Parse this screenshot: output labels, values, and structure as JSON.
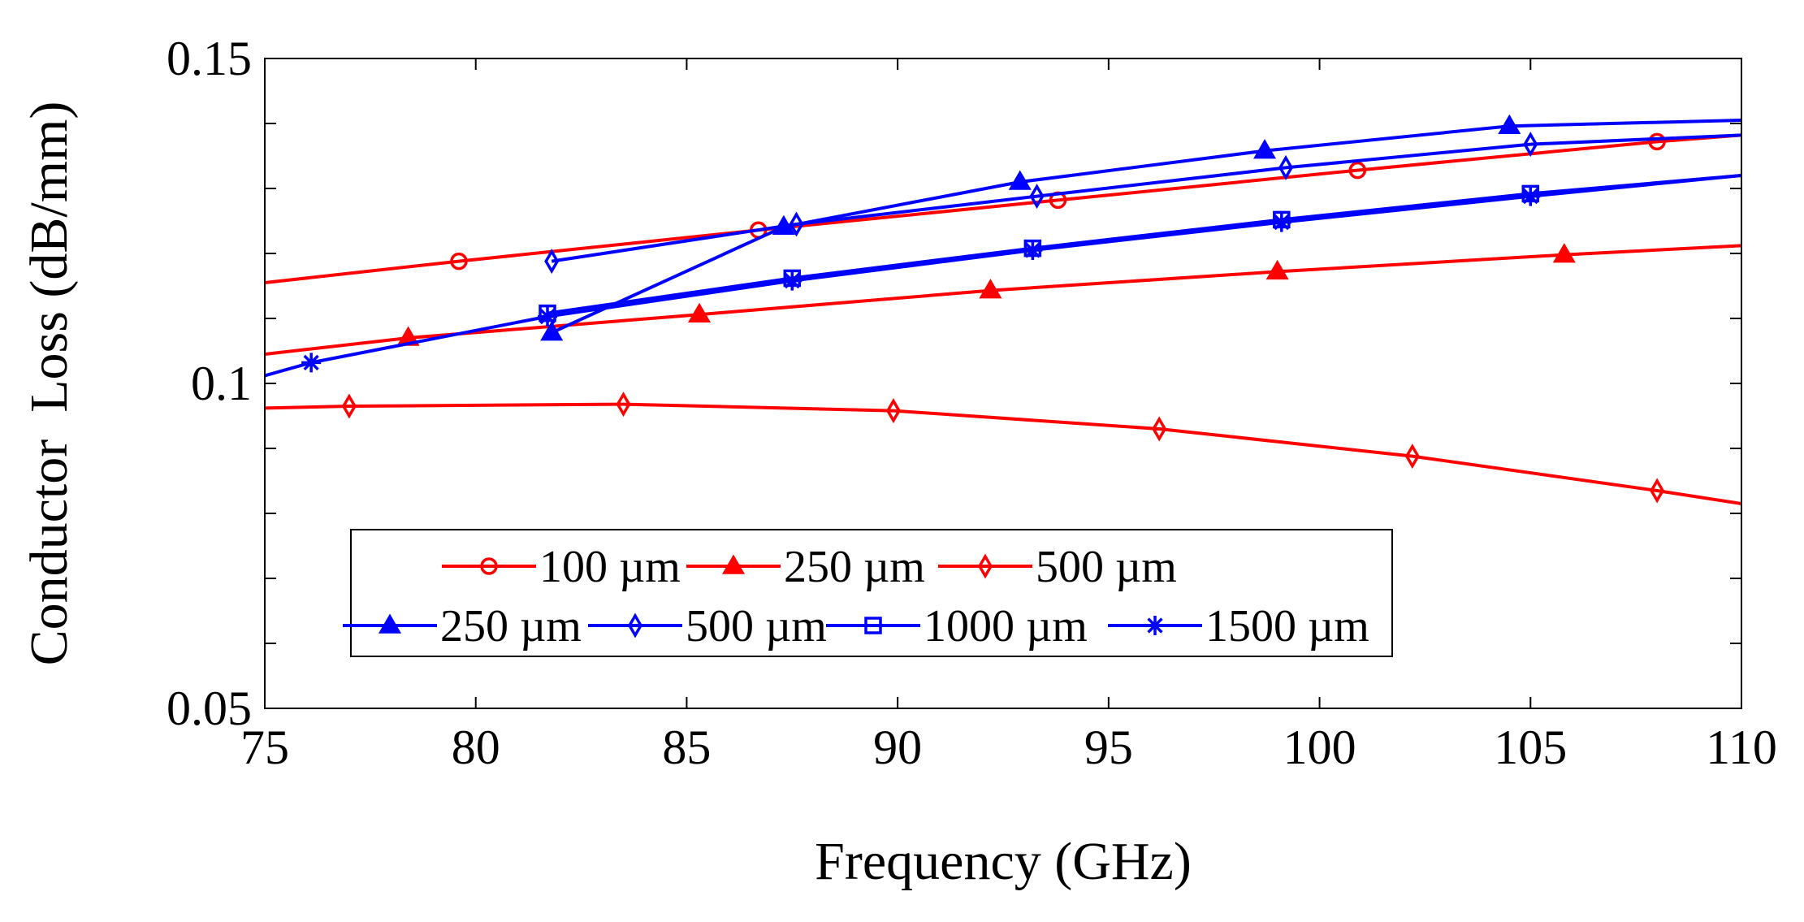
{
  "chart_data": {
    "type": "line",
    "title": "",
    "xlabel": "Frequency (GHz)",
    "ylabel": "Conductor  Loss (dB/mm)",
    "xlim": [
      75,
      110
    ],
    "ylim": [
      0.05,
      0.15
    ],
    "xticks": [
      75,
      80,
      85,
      90,
      95,
      100,
      105,
      110
    ],
    "xtick_labels": [
      "75",
      "80",
      "85",
      "90",
      "95",
      "100",
      "105",
      "110"
    ],
    "yticks": [
      0.05,
      0.1,
      0.15
    ],
    "ytick_labels": [
      "0.05",
      "0.1",
      "0.15"
    ],
    "yminor_ticks": [
      0.06,
      0.07,
      0.08,
      0.09,
      0.11,
      0.12,
      0.13,
      0.14
    ],
    "grid": false,
    "legend_position": "lower-center",
    "series": [
      {
        "name": "100 µm",
        "color": "#ff0000",
        "marker": "circle",
        "x": [
          75,
          79.6,
          86.7,
          93.8,
          100.9,
          108,
          110
        ],
        "y": [
          0.1155,
          0.1188,
          0.1236,
          0.1282,
          0.1328,
          0.1372,
          0.1382
        ],
        "marker_x": [
          79.6,
          86.7,
          93.8,
          100.9,
          108
        ]
      },
      {
        "name": "250 µm",
        "color": "#ff0000",
        "marker": "triangle",
        "x": [
          75,
          78.4,
          85.3,
          92.2,
          99,
          105.8,
          110
        ],
        "y": [
          0.1045,
          0.107,
          0.1106,
          0.1143,
          0.1172,
          0.1198,
          0.1212
        ],
        "marker_x": [
          78.4,
          85.3,
          92.2,
          99,
          105.8
        ]
      },
      {
        "name": "500 µm",
        "color": "#ff0000",
        "marker": "diamond",
        "x": [
          75,
          77,
          83.5,
          89.9,
          96.2,
          102.2,
          108,
          110
        ],
        "y": [
          0.0962,
          0.0965,
          0.0968,
          0.0958,
          0.093,
          0.0888,
          0.0835,
          0.0815
        ],
        "marker_x": [
          77,
          83.5,
          89.9,
          96.2,
          102.2,
          108
        ]
      },
      {
        "name": "250 µm",
        "color": "#0000ff",
        "marker": "triangle",
        "x": [
          81.8,
          87.3,
          92.9,
          98.7,
          104.5,
          110
        ],
        "y": [
          0.1078,
          0.1241,
          0.131,
          0.1358,
          0.1396,
          0.1405
        ],
        "marker_x": [
          81.8,
          87.3,
          92.9,
          98.7,
          104.5
        ]
      },
      {
        "name": "500 µm",
        "color": "#0000ff",
        "marker": "diamond",
        "x": [
          81.8,
          87.6,
          93.3,
          99.2,
          105,
          110
        ],
        "y": [
          0.1188,
          0.1245,
          0.1288,
          0.1332,
          0.1368,
          0.1382
        ],
        "marker_x": [
          81.8,
          87.6,
          93.3,
          99.2,
          105
        ]
      },
      {
        "name": "1000 µm",
        "color": "#0000ff",
        "marker": "square",
        "x": [
          81.7,
          87.5,
          93.2,
          99.1,
          105,
          110
        ],
        "y": [
          0.1108,
          0.1162,
          0.1208,
          0.1252,
          0.1292,
          0.132
        ],
        "marker_x": [
          81.7,
          87.5,
          93.2,
          99.1,
          105
        ]
      },
      {
        "name": "1500 µm",
        "color": "#0000ff",
        "marker": "star",
        "x": [
          75,
          76.1,
          81.7,
          87.5,
          93.2,
          99.1,
          105,
          110
        ],
        "y": [
          0.1012,
          0.1032,
          0.1103,
          0.1158,
          0.1205,
          0.1248,
          0.1288,
          0.132
        ],
        "marker_x": [
          76.1,
          81.7,
          87.5,
          93.2,
          99.1,
          105
        ]
      }
    ]
  }
}
